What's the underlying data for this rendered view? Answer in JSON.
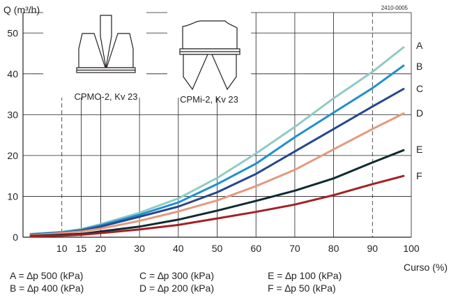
{
  "chart_data": {
    "type": "line",
    "title": "",
    "ylabel": "Q (m³/h)",
    "xlabel": "Curso (%)",
    "doc_code": "2410-0005",
    "xlim": [
      0,
      100
    ],
    "ylim": [
      0,
      55
    ],
    "x_ticks": [
      "10",
      "15",
      "20",
      "30",
      "40",
      "50",
      "60",
      "70",
      "80",
      "90",
      "100"
    ],
    "x_tick_values": [
      10,
      15,
      20,
      30,
      40,
      50,
      60,
      70,
      80,
      90,
      100
    ],
    "y_ticks": [
      "0",
      "10",
      "20",
      "30",
      "40",
      "50"
    ],
    "y_tick_values": [
      0,
      10,
      20,
      30,
      40,
      50
    ],
    "dashed_x": [
      10,
      90
    ],
    "grid": true,
    "x": [
      2,
      10,
      15,
      20,
      30,
      40,
      50,
      60,
      70,
      80,
      90,
      98
    ],
    "series": [
      {
        "name": "A",
        "color": "#8fcbc4",
        "values": [
          0.8,
          1.3,
          2.0,
          3.2,
          6.0,
          9.5,
          14.5,
          20.5,
          27.0,
          34.0,
          40.5,
          46.5
        ]
      },
      {
        "name": "B",
        "color": "#1f8fce",
        "values": [
          0.7,
          1.2,
          1.8,
          2.9,
          5.5,
          8.5,
          13.0,
          18.0,
          24.5,
          30.5,
          36.5,
          42.0
        ]
      },
      {
        "name": "C",
        "color": "#27468f",
        "values": [
          0.6,
          1.1,
          1.6,
          2.6,
          5.0,
          7.5,
          11.0,
          15.5,
          21.0,
          26.5,
          32.0,
          36.3
        ]
      },
      {
        "name": "D",
        "color": "#e4997d",
        "values": [
          0.5,
          1.0,
          1.4,
          2.1,
          4.0,
          6.3,
          9.0,
          12.5,
          16.5,
          21.5,
          26.5,
          30.3
        ]
      },
      {
        "name": "E",
        "color": "#0e2b30",
        "values": [
          0.3,
          0.6,
          0.8,
          1.4,
          2.6,
          4.3,
          6.5,
          8.9,
          11.4,
          14.4,
          18.3,
          21.3
        ]
      },
      {
        "name": "F",
        "color": "#a32025",
        "values": [
          0.2,
          0.4,
          0.6,
          1.0,
          1.9,
          3.0,
          4.6,
          6.2,
          8.0,
          10.3,
          13.0,
          15.0
        ]
      }
    ],
    "insets": [
      {
        "label": "CPMO-2, Kv 23"
      },
      {
        "label": "CPMi-2, Kv 23"
      }
    ],
    "legend": [
      {
        "letter": "A",
        "pressure": "A = ∆p 500 (kPa)"
      },
      {
        "letter": "B",
        "pressure": "B = ∆p 400 (kPa)"
      },
      {
        "letter": "C",
        "pressure": "C = ∆p 300 (kPa)"
      },
      {
        "letter": "D",
        "pressure": "D = ∆p 200 (kPa)"
      },
      {
        "letter": "E",
        "pressure": "E = ∆p 100 (kPa)"
      },
      {
        "letter": "F",
        "pressure": "F = ∆p 50 (kPa)"
      }
    ]
  }
}
